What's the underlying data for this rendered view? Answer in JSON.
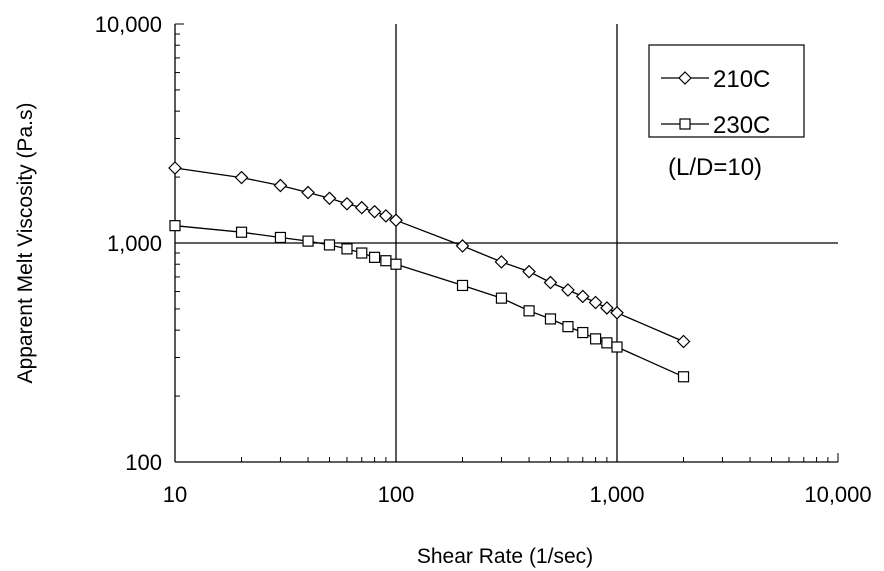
{
  "chart_data": {
    "type": "line",
    "title": "",
    "xlabel": "Shear Rate (1/sec)",
    "ylabel": "Apparent Melt Viscosity (Pa.s)",
    "xscale": "log",
    "yscale": "log",
    "xlim": [
      10,
      10000
    ],
    "ylim": [
      100,
      10000
    ],
    "x_ticks": [
      10,
      100,
      1000,
      10000
    ],
    "x_tick_labels": [
      "10",
      "100",
      "1,000",
      "10,000"
    ],
    "y_ticks": [
      100,
      1000,
      10000
    ],
    "y_tick_labels": [
      "100",
      "1,000",
      "10,000"
    ],
    "grid": "major lines at decades",
    "legend_position": "top-right",
    "annotation": "(L/D=10)",
    "series": [
      {
        "name": "210C",
        "marker": "diamond",
        "x": [
          10,
          20,
          30,
          40,
          50,
          60,
          70,
          80,
          90,
          100,
          200,
          300,
          400,
          500,
          600,
          700,
          800,
          900,
          1000,
          2000
        ],
        "y": [
          2200,
          1990,
          1830,
          1700,
          1600,
          1510,
          1450,
          1390,
          1330,
          1270,
          970,
          820,
          740,
          660,
          610,
          570,
          535,
          505,
          480,
          355
        ]
      },
      {
        "name": "230C",
        "marker": "square",
        "x": [
          10,
          20,
          30,
          40,
          50,
          60,
          70,
          80,
          90,
          100,
          200,
          300,
          400,
          500,
          600,
          700,
          800,
          900,
          1000,
          2000
        ],
        "y": [
          1200,
          1120,
          1060,
          1020,
          980,
          940,
          900,
          860,
          830,
          800,
          640,
          560,
          490,
          450,
          415,
          390,
          365,
          350,
          335,
          245
        ]
      }
    ]
  }
}
